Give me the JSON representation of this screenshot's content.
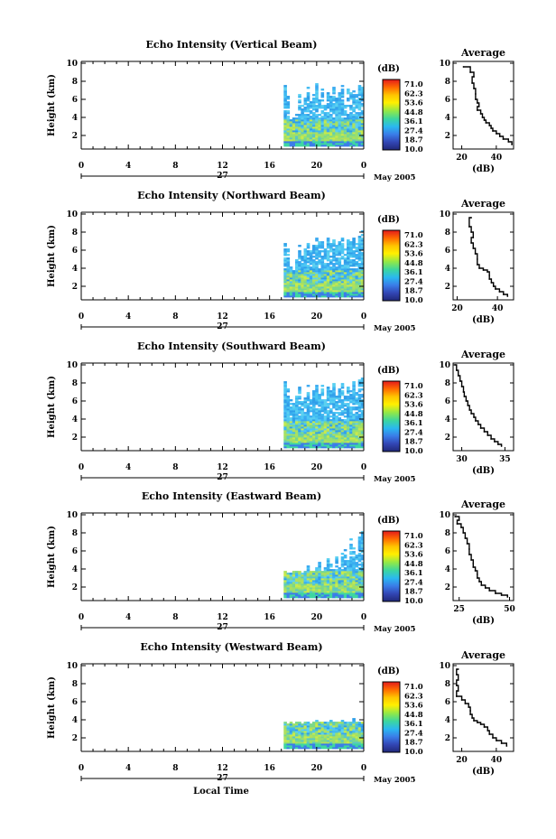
{
  "chart_data": [
    {
      "type": "heatmap",
      "title": "Echo Intensity (Vertical Beam)",
      "ylabel": "Height (km)",
      "x_ticks": [
        "0",
        "4",
        "8",
        "12",
        "16",
        "20",
        "0"
      ],
      "day_label": "27",
      "month_label": "May 2005",
      "y_ticks": [
        "2",
        "4",
        "6",
        "8",
        "10"
      ],
      "xlim": [
        0,
        24
      ],
      "ylim": [
        0.5,
        10.2
      ],
      "data_start_hour": 17.2,
      "column_tops_km": [
        7.6,
        6.4,
        3.8,
        4.0,
        4.4,
        6.8,
        5.4,
        6.2,
        7.4,
        5.8,
        6.6,
        7.8,
        6.0,
        7.2,
        5.4,
        7.0,
        6.6,
        7.4,
        6.2,
        7.0,
        7.6,
        5.8,
        7.2,
        6.8,
        7.4,
        6.6,
        7.8,
        7.4
      ]
    },
    {
      "type": "heatmap",
      "title": "Echo Intensity (Northward Beam)",
      "ylabel": "Height (km)",
      "x_ticks": [
        "0",
        "4",
        "8",
        "12",
        "16",
        "20",
        "0"
      ],
      "day_label": "27",
      "month_label": "May 2005",
      "y_ticks": [
        "2",
        "4",
        "6",
        "8",
        "10"
      ],
      "xlim": [
        0,
        24
      ],
      "ylim": [
        0.5,
        10.2
      ],
      "data_start_hour": 17.2,
      "column_tops_km": [
        6.8,
        6.2,
        4.2,
        3.8,
        5.0,
        6.6,
        5.6,
        6.2,
        6.8,
        6.0,
        6.6,
        7.4,
        7.0,
        7.2,
        6.2,
        7.4,
        6.8,
        7.2,
        6.6,
        7.0,
        7.4,
        6.2,
        7.2,
        7.0,
        7.4,
        6.8,
        7.6,
        8.2
      ]
    },
    {
      "type": "heatmap",
      "title": "Echo Intensity (Southward Beam)",
      "ylabel": "Height (km)",
      "x_ticks": [
        "0",
        "4",
        "8",
        "12",
        "16",
        "20",
        "0"
      ],
      "day_label": "27",
      "month_label": "May 2005",
      "y_ticks": [
        "2",
        "4",
        "6",
        "8",
        "10"
      ],
      "xlim": [
        0,
        24
      ],
      "ylim": [
        0.5,
        10.2
      ],
      "data_start_hour": 17.2,
      "column_tops_km": [
        8.2,
        7.4,
        6.2,
        5.8,
        6.6,
        7.6,
        6.0,
        6.4,
        7.8,
        6.2,
        7.4,
        8.0,
        6.8,
        7.8,
        6.2,
        7.6,
        7.2,
        8.0,
        6.8,
        7.4,
        8.0,
        6.6,
        7.6,
        7.2,
        8.2,
        7.0,
        8.4,
        8.6
      ]
    },
    {
      "type": "heatmap",
      "title": "Echo Intensity (Eastward Beam)",
      "ylabel": "Height (km)",
      "x_ticks": [
        "0",
        "4",
        "8",
        "12",
        "16",
        "20",
        "0"
      ],
      "day_label": "27",
      "month_label": "May 2005",
      "y_ticks": [
        "2",
        "4",
        "6",
        "8",
        "10"
      ],
      "xlim": [
        0,
        24
      ],
      "ylim": [
        0.5,
        10.2
      ],
      "data_start_hour": 17.2,
      "column_tops_km": [
        3.8,
        3.6,
        3.6,
        3.8,
        3.8,
        3.8,
        3.6,
        3.8,
        4.4,
        3.8,
        3.8,
        4.2,
        4.8,
        3.8,
        4.2,
        5.2,
        4.6,
        4.0,
        5.4,
        4.2,
        5.8,
        6.2,
        5.0,
        7.4,
        6.4,
        5.8,
        7.8,
        8.2
      ]
    },
    {
      "type": "heatmap",
      "title": "Echo Intensity (Westward Beam)",
      "ylabel": "Height (km)",
      "x_ticks": [
        "0",
        "4",
        "8",
        "12",
        "16",
        "20",
        "0"
      ],
      "day_label": "27",
      "month_label": "May 2005",
      "y_ticks": [
        "2",
        "4",
        "6",
        "8",
        "10"
      ],
      "xlim": [
        0,
        24
      ],
      "ylim": [
        0.5,
        10.2
      ],
      "data_start_hour": 17.2,
      "column_tops_km": [
        3.8,
        3.6,
        3.8,
        3.6,
        3.8,
        3.8,
        3.6,
        3.8,
        3.8,
        3.6,
        3.8,
        4.0,
        3.8,
        3.8,
        3.8,
        3.8,
        4.0,
        3.8,
        3.8,
        3.8,
        4.0,
        3.8,
        3.8,
        3.8,
        4.2,
        3.8,
        3.8,
        3.8
      ]
    }
  ],
  "averages": [
    {
      "type": "line",
      "title": "Average",
      "xlabel": "(dB)",
      "x_ticks": [
        "20",
        "40"
      ],
      "xlim": [
        15,
        50
      ],
      "y_ticks": [
        "2",
        "4",
        "6",
        "8",
        "10"
      ],
      "ylim": [
        0.5,
        10.2
      ],
      "x": [
        21,
        25,
        27,
        26,
        27,
        28,
        28,
        29,
        30,
        29,
        31,
        32,
        33,
        34,
        36,
        37,
        38,
        40,
        42,
        44,
        47,
        49
      ],
      "y": [
        9.6,
        9.0,
        8.5,
        7.8,
        7.2,
        6.6,
        6.0,
        5.6,
        5.2,
        4.8,
        4.4,
        4.0,
        3.7,
        3.4,
        3.1,
        2.8,
        2.5,
        2.2,
        1.9,
        1.6,
        1.3,
        1.0
      ]
    },
    {
      "type": "line",
      "title": "Average",
      "xlabel": "(dB)",
      "x_ticks": [
        "20",
        "40"
      ],
      "xlim": [
        18,
        48
      ],
      "y_ticks": [
        "2",
        "4",
        "6",
        "8",
        "10"
      ],
      "ylim": [
        0.5,
        10.2
      ],
      "x": [
        27,
        26,
        27,
        28,
        27,
        28,
        29,
        30,
        30,
        31,
        33,
        35,
        36,
        36,
        37,
        38,
        39,
        41,
        43,
        45
      ],
      "y": [
        9.6,
        8.6,
        8.0,
        7.4,
        6.8,
        6.2,
        5.6,
        5.0,
        4.4,
        4.0,
        3.8,
        3.6,
        3.2,
        2.8,
        2.4,
        2.0,
        1.7,
        1.4,
        1.1,
        0.9
      ]
    },
    {
      "type": "line",
      "title": "Average",
      "xlabel": "(dB)",
      "x_ticks": [
        "30",
        "35"
      ],
      "xlim": [
        29,
        36
      ],
      "y_ticks": [
        "2",
        "4",
        "6",
        "8",
        "10"
      ],
      "ylim": [
        0.5,
        10.2
      ],
      "x": [
        29.2,
        29.4,
        29.6,
        29.8,
        30.0,
        30.2,
        30.3,
        30.5,
        30.7,
        30.9,
        31.1,
        31.4,
        31.6,
        31.9,
        32.2,
        32.6,
        33.0,
        33.4,
        33.8,
        34.2,
        34.6
      ],
      "y": [
        10.0,
        9.4,
        8.8,
        8.2,
        7.6,
        7.0,
        6.5,
        6.0,
        5.5,
        5.0,
        4.6,
        4.2,
        3.8,
        3.4,
        3.0,
        2.6,
        2.2,
        1.8,
        1.5,
        1.2,
        1.0
      ]
    },
    {
      "type": "line",
      "title": "Average",
      "xlabel": "(dB)",
      "x_ticks": [
        "25",
        "50"
      ],
      "xlim": [
        22,
        52
      ],
      "y_ticks": [
        "2",
        "4",
        "6",
        "8",
        "10"
      ],
      "ylim": [
        0.5,
        10.2
      ],
      "x": [
        23,
        25,
        24,
        26,
        27,
        28,
        29,
        30,
        30,
        31,
        32,
        32,
        33,
        34,
        34,
        35,
        36,
        38,
        40,
        43,
        46,
        49
      ],
      "y": [
        9.8,
        9.4,
        9.0,
        8.6,
        8.0,
        7.4,
        6.8,
        6.2,
        5.6,
        5.0,
        4.6,
        4.2,
        3.8,
        3.4,
        3.0,
        2.6,
        2.2,
        1.9,
        1.6,
        1.3,
        1.1,
        0.9
      ]
    },
    {
      "type": "line",
      "title": "Average",
      "xlabel": "(dB)",
      "x_ticks": [
        "20",
        "40"
      ],
      "xlim": [
        15,
        50
      ],
      "y_ticks": [
        "2",
        "4",
        "6",
        "8",
        "10"
      ],
      "ylim": [
        0.5,
        10.2
      ],
      "x": [
        18,
        17,
        18,
        17,
        18,
        17,
        20,
        22,
        24,
        25,
        25,
        26,
        27,
        29,
        31,
        33,
        35,
        36,
        38,
        40,
        43,
        46
      ],
      "y": [
        9.6,
        9.0,
        8.4,
        7.8,
        7.2,
        6.6,
        6.2,
        5.8,
        5.4,
        5.0,
        4.6,
        4.2,
        3.9,
        3.7,
        3.5,
        3.2,
        2.8,
        2.4,
        2.0,
        1.7,
        1.4,
        1.1
      ]
    }
  ],
  "colorbar": {
    "unit": "(dB)",
    "labels": [
      "71.0",
      "62.3",
      "53.6",
      "44.8",
      "36.1",
      "27.4",
      "18.7",
      "10.0"
    ],
    "colors": [
      "#e31a1c",
      "#ff6a00",
      "#ffc400",
      "#fff000",
      "#8fe84a",
      "#3cd6a0",
      "#2ab8f0",
      "#3a7ce8",
      "#3246b4",
      "#202878"
    ]
  },
  "footer": {
    "xlabel": "Local Time"
  }
}
